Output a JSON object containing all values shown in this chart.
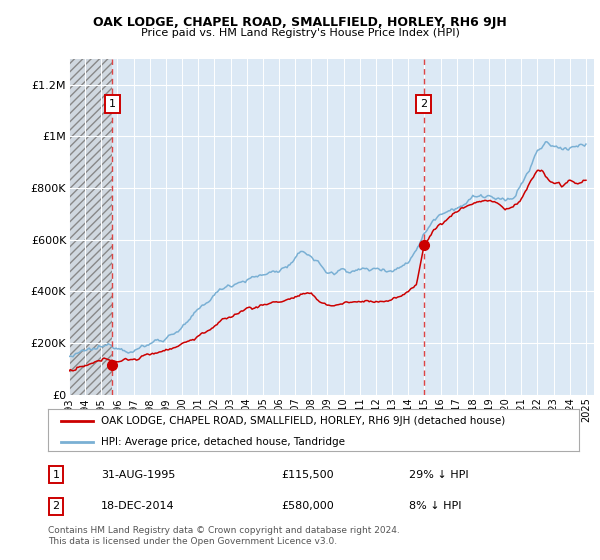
{
  "title": "OAK LODGE, CHAPEL ROAD, SMALLFIELD, HORLEY, RH6 9JH",
  "subtitle": "Price paid vs. HM Land Registry's House Price Index (HPI)",
  "ylim": [
    0,
    1300000
  ],
  "yticks": [
    0,
    200000,
    400000,
    600000,
    800000,
    1000000,
    1200000
  ],
  "ytick_labels": [
    "£0",
    "£200K",
    "£400K",
    "£600K",
    "£800K",
    "£1M",
    "£1.2M"
  ],
  "xlim_start": 1993.0,
  "xlim_end": 2025.5,
  "sale1_date": 1995.67,
  "sale1_price": 115500,
  "sale1_label": "1",
  "sale2_date": 2014.97,
  "sale2_price": 580000,
  "sale2_label": "2",
  "red_line_color": "#cc0000",
  "blue_line_color": "#7ab0d4",
  "bg_color": "#dce9f5",
  "grid_color": "#ffffff",
  "dashed_line_color": "#dd4444",
  "legend_label_red": "OAK LODGE, CHAPEL ROAD, SMALLFIELD, HORLEY, RH6 9JH (detached house)",
  "legend_label_blue": "HPI: Average price, detached house, Tandridge",
  "table_row1": [
    "1",
    "31-AUG-1995",
    "£115,500",
    "29% ↓ HPI"
  ],
  "table_row2": [
    "2",
    "18-DEC-2014",
    "£580,000",
    "8% ↓ HPI"
  ],
  "footer": "Contains HM Land Registry data © Crown copyright and database right 2024.\nThis data is licensed under the Open Government Licence v3.0."
}
